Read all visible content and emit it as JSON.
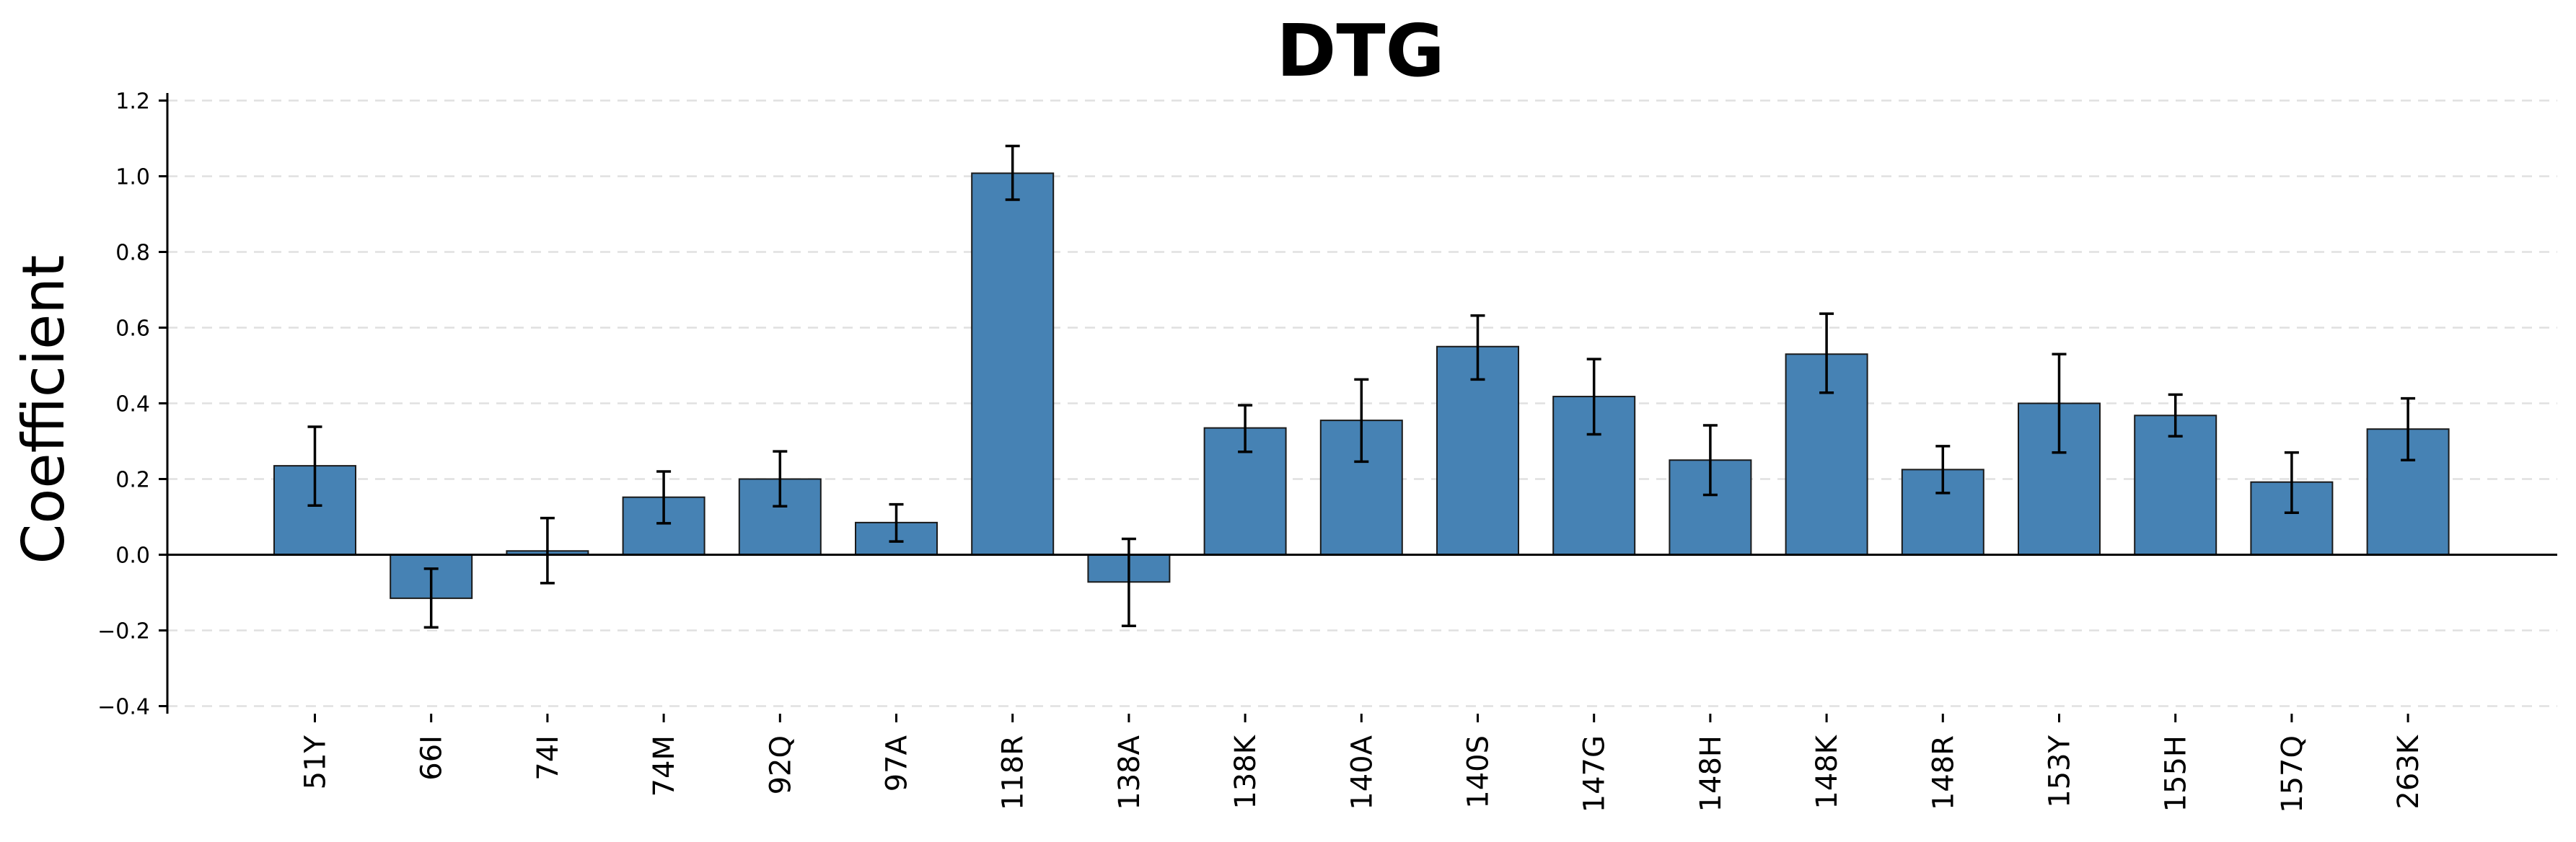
{
  "chart_data": {
    "type": "bar",
    "title": "DTG",
    "xlabel": "",
    "ylabel": "Coefficient",
    "ylim": [
      -0.42,
      1.22
    ],
    "yticks": [
      -0.4,
      -0.2,
      0.0,
      0.2,
      0.4,
      0.6,
      0.8,
      1.0,
      1.2
    ],
    "ytick_labels": [
      "−0.4",
      "−0.2",
      "0.0",
      "0.2",
      "0.4",
      "0.6",
      "0.8",
      "1.0",
      "1.2"
    ],
    "grid": true,
    "color": "#4682b4",
    "categories": [
      "51Y",
      "66I",
      "74I",
      "74M",
      "92Q",
      "97A",
      "118R",
      "138A",
      "138K",
      "140A",
      "140S",
      "147G",
      "148H",
      "148K",
      "148R",
      "153Y",
      "155H",
      "157Q",
      "263K"
    ],
    "values": [
      0.235,
      -0.115,
      0.01,
      0.152,
      0.2,
      0.085,
      1.008,
      -0.072,
      0.335,
      0.355,
      0.55,
      0.418,
      0.25,
      0.53,
      0.225,
      0.4,
      0.368,
      0.192,
      0.332
    ],
    "error_low": [
      0.13,
      -0.192,
      -0.075,
      0.083,
      0.128,
      0.035,
      0.938,
      -0.188,
      0.272,
      0.246,
      0.463,
      0.318,
      0.158,
      0.428,
      0.163,
      0.27,
      0.313,
      0.111,
      0.25
    ],
    "error_high": [
      0.338,
      -0.037,
      0.097,
      0.22,
      0.273,
      0.133,
      1.08,
      0.042,
      0.395,
      0.463,
      0.632,
      0.517,
      0.342,
      0.637,
      0.287,
      0.53,
      0.423,
      0.27,
      0.413
    ]
  }
}
